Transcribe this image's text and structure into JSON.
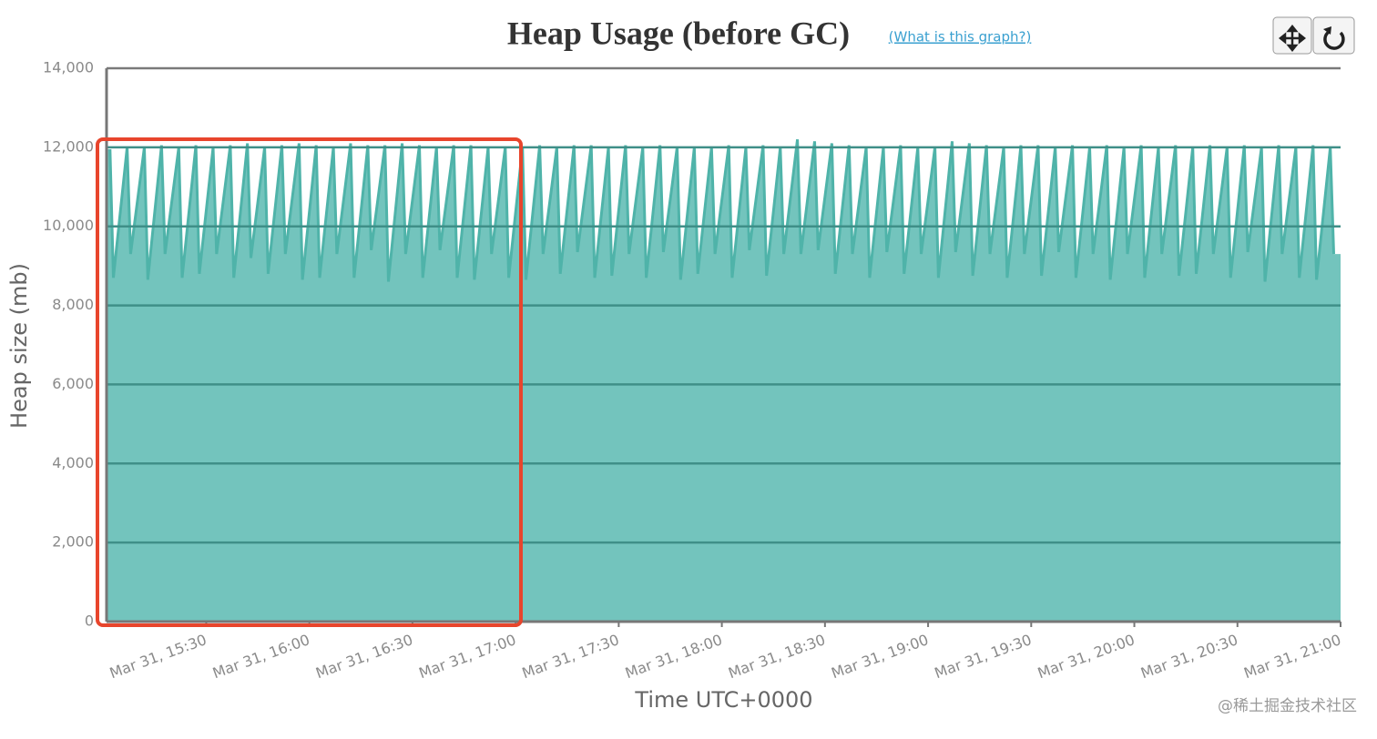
{
  "chart_data": {
    "type": "area",
    "title": "Heap Usage (before GC)",
    "link": "(What is this graph?)",
    "watermark": "@稀土掘金技术社区",
    "x_label": "Time UTC+0000",
    "y_label": "Heap size (mb)",
    "color": "#73c4bd",
    "line_color": "#4fb3a9",
    "grid": true,
    "ylim": [
      0,
      14000
    ],
    "yticks": [
      0,
      {
        "value": 2000,
        "label": "2,000"
      },
      {
        "value": 4000,
        "label": "4,000"
      },
      {
        "value": 6000,
        "label": "6,000"
      },
      {
        "value": 8000,
        "label": "8,000"
      },
      {
        "value": 10000,
        "label": "10,000"
      },
      {
        "value": 12000,
        "label": "12,000"
      },
      {
        "value": 14000,
        "label": "14,000"
      }
    ],
    "xlim": [
      "Mar 31, 15:01",
      "Mar 31, 21:00"
    ],
    "xticks": [
      "Mar 31, 15:30",
      "Mar 31, 16:00",
      "Mar 31, 16:30",
      "Mar 31, 17:00",
      "Mar 31, 17:30",
      "Mar 31, 18:00",
      "Mar 31, 18:30",
      "Mar 31, 19:00",
      "Mar 31, 19:30",
      "Mar 31, 20:00",
      "Mar 31, 20:30",
      "Mar 31, 21:00"
    ],
    "x": [
      "Mar 31, 15:02",
      "Mar 31, 15:03",
      "Mar 31, 15:07",
      "Mar 31, 15:08",
      "Mar 31, 15:12",
      "Mar 31, 15:13",
      "Mar 31, 15:17",
      "Mar 31, 15:18",
      "Mar 31, 15:22",
      "Mar 31, 15:23",
      "Mar 31, 15:27",
      "Mar 31, 15:28",
      "Mar 31, 15:32",
      "Mar 31, 15:33",
      "Mar 31, 15:37",
      "Mar 31, 15:38",
      "Mar 31, 15:42",
      "Mar 31, 15:43",
      "Mar 31, 15:47",
      "Mar 31, 15:48",
      "Mar 31, 15:52",
      "Mar 31, 15:53",
      "Mar 31, 15:57",
      "Mar 31, 15:58",
      "Mar 31, 16:02",
      "Mar 31, 16:03",
      "Mar 31, 16:07",
      "Mar 31, 16:08",
      "Mar 31, 16:12",
      "Mar 31, 16:13",
      "Mar 31, 16:17",
      "Mar 31, 16:18",
      "Mar 31, 16:22",
      "Mar 31, 16:23",
      "Mar 31, 16:27",
      "Mar 31, 16:28",
      "Mar 31, 16:32",
      "Mar 31, 16:33",
      "Mar 31, 16:37",
      "Mar 31, 16:38",
      "Mar 31, 16:42",
      "Mar 31, 16:43",
      "Mar 31, 16:47",
      "Mar 31, 16:48",
      "Mar 31, 16:52",
      "Mar 31, 16:53",
      "Mar 31, 16:57",
      "Mar 31, 16:58",
      "Mar 31, 17:02",
      "Mar 31, 17:03",
      "Mar 31, 17:07",
      "Mar 31, 17:08",
      "Mar 31, 17:12",
      "Mar 31, 17:13",
      "Mar 31, 17:17",
      "Mar 31, 17:18",
      "Mar 31, 17:22",
      "Mar 31, 17:23",
      "Mar 31, 17:27",
      "Mar 31, 17:28",
      "Mar 31, 17:32",
      "Mar 31, 17:33",
      "Mar 31, 17:37",
      "Mar 31, 17:38",
      "Mar 31, 17:42",
      "Mar 31, 17:43",
      "Mar 31, 17:47",
      "Mar 31, 17:48",
      "Mar 31, 17:52",
      "Mar 31, 17:53",
      "Mar 31, 17:57",
      "Mar 31, 17:58",
      "Mar 31, 18:02",
      "Mar 31, 18:03",
      "Mar 31, 18:07",
      "Mar 31, 18:08",
      "Mar 31, 18:12",
      "Mar 31, 18:13",
      "Mar 31, 18:17",
      "Mar 31, 18:18",
      "Mar 31, 18:22",
      "Mar 31, 18:23",
      "Mar 31, 18:27",
      "Mar 31, 18:28",
      "Mar 31, 18:32",
      "Mar 31, 18:33",
      "Mar 31, 18:37",
      "Mar 31, 18:38",
      "Mar 31, 18:42",
      "Mar 31, 18:43",
      "Mar 31, 18:47",
      "Mar 31, 18:48",
      "Mar 31, 18:52",
      "Mar 31, 18:53",
      "Mar 31, 18:57",
      "Mar 31, 18:58",
      "Mar 31, 19:02",
      "Mar 31, 19:03",
      "Mar 31, 19:07",
      "Mar 31, 19:08",
      "Mar 31, 19:12",
      "Mar 31, 19:13",
      "Mar 31, 19:17",
      "Mar 31, 19:18",
      "Mar 31, 19:22",
      "Mar 31, 19:23",
      "Mar 31, 19:27",
      "Mar 31, 19:28",
      "Mar 31, 19:32",
      "Mar 31, 19:33",
      "Mar 31, 19:37",
      "Mar 31, 19:38",
      "Mar 31, 19:42",
      "Mar 31, 19:43",
      "Mar 31, 19:47",
      "Mar 31, 19:48",
      "Mar 31, 19:52",
      "Mar 31, 19:53",
      "Mar 31, 19:57",
      "Mar 31, 19:58",
      "Mar 31, 20:02",
      "Mar 31, 20:03",
      "Mar 31, 20:07",
      "Mar 31, 20:08",
      "Mar 31, 20:12",
      "Mar 31, 20:13",
      "Mar 31, 20:17",
      "Mar 31, 20:18",
      "Mar 31, 20:22",
      "Mar 31, 20:23",
      "Mar 31, 20:27",
      "Mar 31, 20:28",
      "Mar 31, 20:32",
      "Mar 31, 20:33",
      "Mar 31, 20:37",
      "Mar 31, 20:38",
      "Mar 31, 20:42",
      "Mar 31, 20:43",
      "Mar 31, 20:47",
      "Mar 31, 20:48",
      "Mar 31, 20:52",
      "Mar 31, 20:53",
      "Mar 31, 20:57",
      "Mar 31, 20:58"
    ],
    "values": [
      11950,
      8700,
      12000,
      9300,
      12000,
      8650,
      12050,
      9300,
      12000,
      8700,
      12050,
      8800,
      12000,
      9300,
      12050,
      8700,
      12100,
      9200,
      12000,
      8800,
      12050,
      9300,
      12100,
      8650,
      12050,
      8700,
      12000,
      9300,
      12100,
      8700,
      12050,
      9400,
      12050,
      8600,
      12100,
      9300,
      12050,
      8700,
      12000,
      9400,
      12050,
      8700,
      12050,
      8650,
      12000,
      9300,
      12000,
      8700,
      12000,
      8650,
      12050,
      9300,
      12000,
      8800,
      12050,
      9350,
      12050,
      8700,
      12000,
      8750,
      12050,
      9300,
      12000,
      8700,
      12050,
      9350,
      12000,
      8650,
      12000,
      8800,
      12000,
      9300,
      12050,
      8700,
      12000,
      9400,
      12050,
      8750,
      12000,
      9300,
      12200,
      9300,
      12150,
      9400,
      12100,
      8800,
      12050,
      9300,
      12000,
      8700,
      12000,
      9350,
      12050,
      8800,
      12000,
      9300,
      12000,
      8700,
      12150,
      9350,
      12100,
      8750,
      12050,
      9300,
      12000,
      8700,
      12050,
      9300,
      12050,
      8750,
      12000,
      9350,
      12050,
      8700,
      12000,
      9300,
      12050,
      8650,
      12000,
      9300,
      12050,
      8700,
      12000,
      9300,
      12050,
      8750,
      12000,
      8800,
      12050,
      9300,
      12000,
      8700,
      12050,
      9350,
      12000,
      8600,
      12050,
      9300,
      12000,
      8700,
      12050,
      8650,
      12000,
      9300
    ]
  }
}
